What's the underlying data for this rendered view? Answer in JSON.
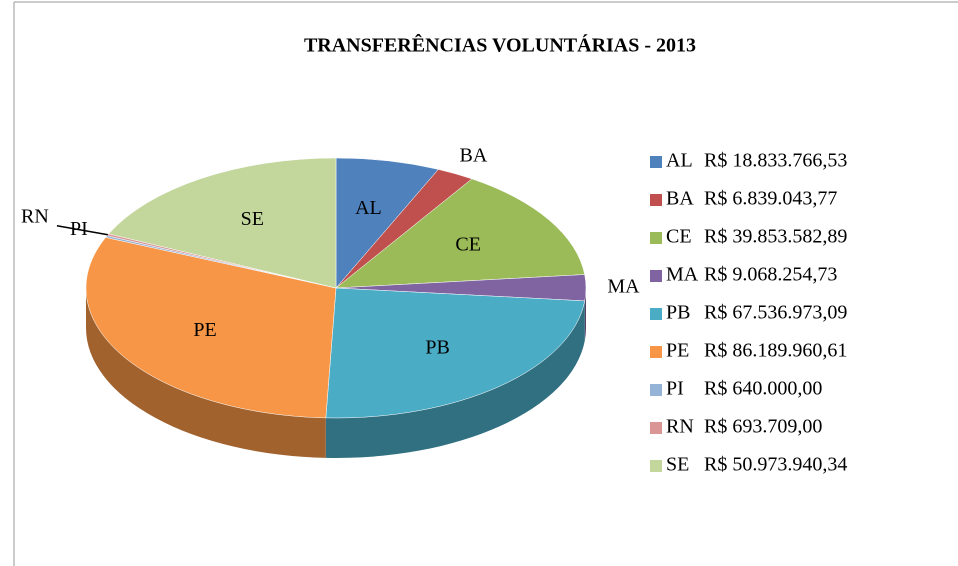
{
  "chart_data": {
    "type": "pie3d",
    "title": "TRANSFERÊNCIAS VOLUNTÁRIAS - 2013",
    "categories": [
      "AL",
      "BA",
      "CE",
      "MA",
      "PB",
      "PE",
      "PI",
      "RN",
      "SE"
    ],
    "values": [
      18833766.53,
      6839043.77,
      39853582.89,
      9068254.73,
      67536973.09,
      86189960.61,
      640000.0,
      693709.0,
      50973940.34
    ],
    "value_labels": [
      "R$ 18.833.766,53",
      "R$ 6.839.043,77",
      "R$ 39.853.582,89",
      "R$ 9.068.254,73",
      "R$ 67.536.973,09",
      "R$ 86.189.960,61",
      "R$ 640.000,00",
      "R$ 693.709,00",
      "R$ 50.973.940,34"
    ],
    "colors": [
      "#4f81bd",
      "#c0504d",
      "#9bbb59",
      "#8064a2",
      "#4bacc6",
      "#f79646",
      "#95b3d7",
      "#d99694",
      "#c3d69b"
    ],
    "legend": "right"
  }
}
